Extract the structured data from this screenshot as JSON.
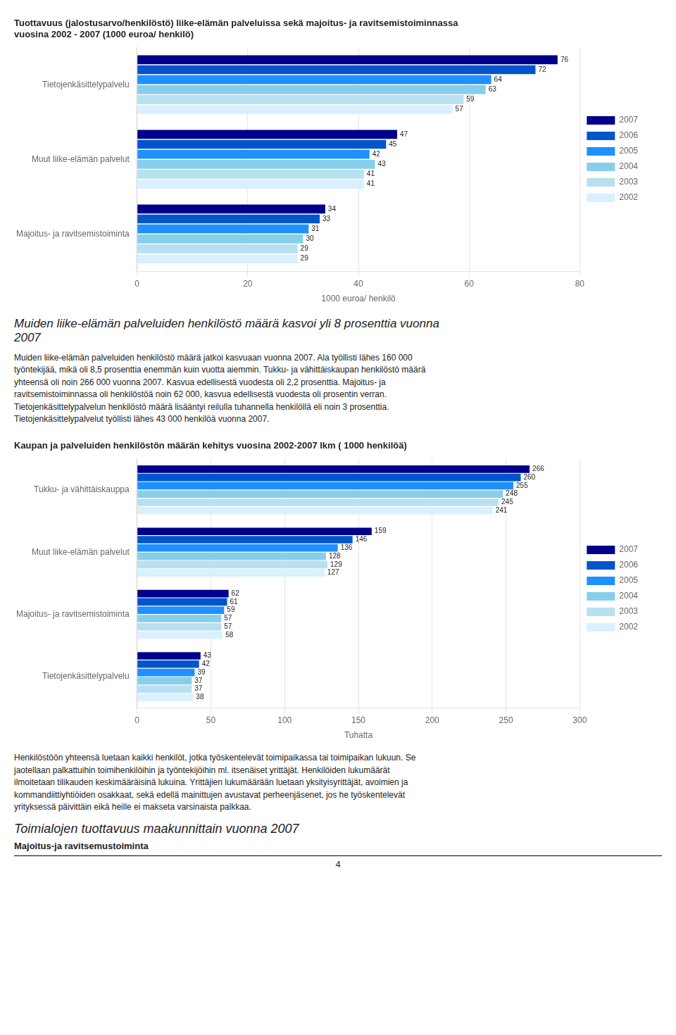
{
  "chart_data": [
    {
      "type": "bar",
      "orientation": "horizontal",
      "title": [
        "Tuottavuus (jalostusarvo/henkilöstö) liike-elämän palveluissa sekä majoitus- ja ravitsemistoiminnassa",
        "vuosina 2002 - 2007 (1000 euroa/ henkilö)"
      ],
      "xlabel": "1000 euroa/ henkilö",
      "categories": [
        "Tietojenkäsittelypalvelu",
        "Muut liike-elämän palvelut",
        "Majoitus- ja ravitsemistoiminta"
      ],
      "series": [
        {
          "name": "2007",
          "color": "#00008B",
          "values": [
            76,
            47,
            34
          ]
        },
        {
          "name": "2006",
          "color": "#0055CC",
          "values": [
            72,
            45,
            33
          ]
        },
        {
          "name": "2005",
          "color": "#1E90FF",
          "values": [
            64,
            42,
            31
          ]
        },
        {
          "name": "2004",
          "color": "#87CEEB",
          "values": [
            63,
            43,
            30
          ]
        },
        {
          "name": "2003",
          "color": "#B8E0F0",
          "values": [
            59,
            41,
            29
          ]
        },
        {
          "name": "2002",
          "color": "#D8F0FF",
          "values": [
            57,
            41,
            29
          ]
        }
      ],
      "xlim": [
        0,
        80
      ],
      "xticks": [
        0,
        20,
        40,
        60,
        80
      ],
      "grid": true,
      "legend": "right",
      "data_labels": true
    },
    {
      "type": "bar",
      "orientation": "horizontal",
      "title": "Kaupan ja palveluiden henkilöstön määrän kehitys vuosina 2002-2007 lkm ( 1000 henkilöä)",
      "xlabel": "Tuhatta",
      "categories": [
        "Tukku- ja vähittäiskauppa",
        "Muut liike-elämän palvelut",
        "Majoitus- ja ravitsemistoiminta",
        "Tietojenkäsittelypalvelu"
      ],
      "series": [
        {
          "name": "2007",
          "color": "#00008B",
          "values": [
            266,
            159,
            62,
            43
          ]
        },
        {
          "name": "2006",
          "color": "#0055CC",
          "values": [
            260,
            146,
            61,
            42
          ]
        },
        {
          "name": "2005",
          "color": "#1E90FF",
          "values": [
            255,
            136,
            59,
            39
          ]
        },
        {
          "name": "2004",
          "color": "#87CEEB",
          "values": [
            248,
            128,
            57,
            37
          ]
        },
        {
          "name": "2003",
          "color": "#B8E0F0",
          "values": [
            245,
            129,
            57,
            37
          ]
        },
        {
          "name": "2002",
          "color": "#D8F0FF",
          "values": [
            241,
            127,
            58,
            38
          ]
        }
      ],
      "xlim": [
        0,
        300
      ],
      "xticks": [
        0,
        50,
        100,
        150,
        200,
        250,
        300
      ],
      "grid": true,
      "legend": "right",
      "data_labels": true
    }
  ],
  "section_title": "Muiden liike-elämän palveluiden henkilöstö määrä kasvoi yli 8 prosenttia vuonna\n2007",
  "body_text": "Muiden liike-elämän palveluiden henkilöstö määrä jatkoi kasvuaan vuonna 2007. Ala työllisti lähes 160 000\ntyöntekijää, mikä oli 8,5 prosenttia enemmän kuin vuotta aiemmin. Tukku- ja vähittäiskaupan henkilöstö määrä\nyhteensä oli noin 266 000 vuonna 2007. Kasvua edellisestä vuodesta oli 2,2 prosenttia. Majoitus- ja\nravitsemistoiminnassa oli henkilöstöä noin 62 000, kasvua edellisestä vuodesta oli prosentin verran.\nTietojenkäsittelypalvelun henkilöstö määrä lisääntyi reilulla tuhannella henkilöllä eli noin 3 prosenttia.\nTietojenkäsittelypalvelut työllisti lähes 43 000 henkilöä vuonna 2007.",
  "footer_text": "Henkilöstöön yhteensä luetaan kaikki henkilöt, jotka työskentelevät toimipaikassa tai toimipaikan lukuun. Se\njaotellaan palkattuihin toimihenkilöihin ja työntekijöihin ml. itsenäiset yrittäjät. Henkilöiden lukumäärät\nilmoitetaan tilikauden keskimääräisinä lukuina. Yrittäjien lukumäärään luetaan yksityisyrittäjät, avoimien ja\nkommandiittiyhtiöiden osakkaat, sekä edellä mainittujen avustavat perheenjäsenet, jos he työskentelevät\nyrityksessä päivittäin eikä heille ei makseta varsinaista palkkaa.",
  "italic_title": "Toimialojen tuottavuus maakunnittain vuonna 2007",
  "bold_subtitle": "Majoitus-ja ravitsemustoiminta",
  "page_number": "4"
}
